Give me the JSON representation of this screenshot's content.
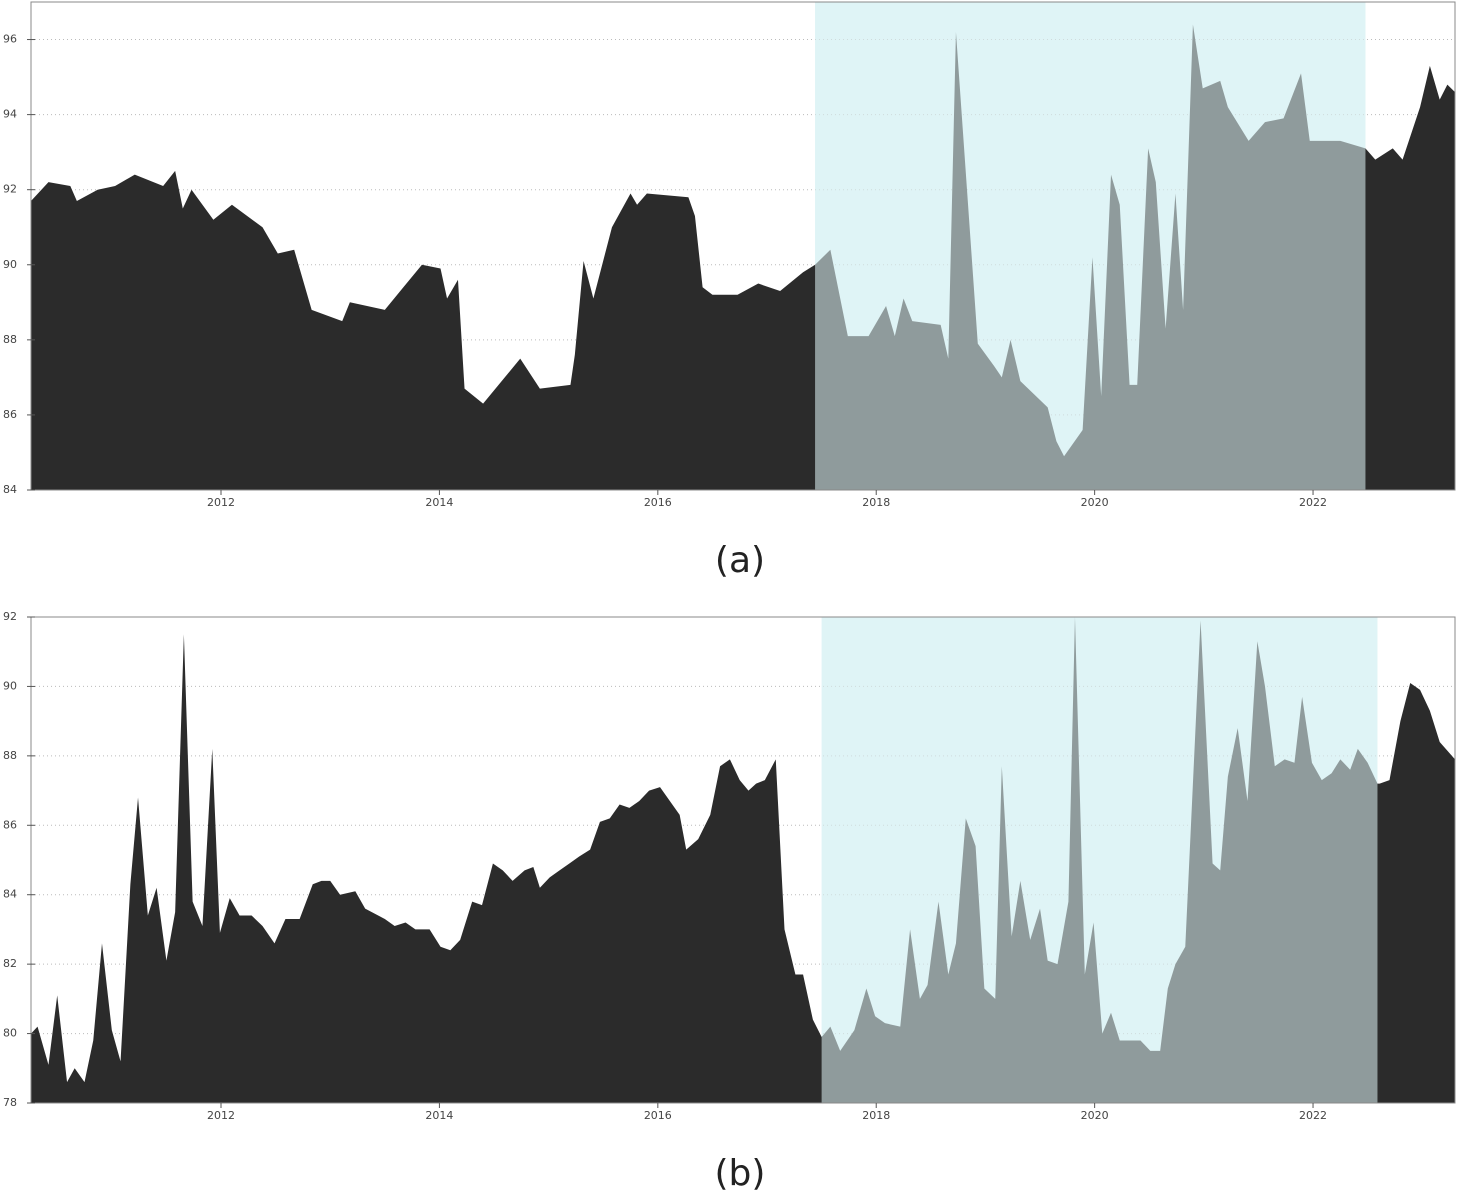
{
  "chart_data": [
    {
      "type": "area",
      "caption": "(a)",
      "color": "#2b2b2b",
      "highlight": [
        2017.44,
        2022.48
      ],
      "highlight_color": "#dff4f6",
      "grid": true,
      "xlim": [
        2010.26,
        2023.3
      ],
      "ylim": [
        84,
        97
      ],
      "xticks": [
        2012,
        2014,
        2016,
        2018,
        2020,
        2022
      ],
      "yticks": [
        84,
        86,
        88,
        90,
        92,
        94,
        96
      ],
      "x": [
        2010.26,
        2010.42,
        2010.62,
        2010.68,
        2010.87,
        2011.03,
        2011.21,
        2011.47,
        2011.58,
        2011.65,
        2011.73,
        2011.93,
        2012.1,
        2012.38,
        2012.52,
        2012.67,
        2012.83,
        2013.11,
        2013.18,
        2013.5,
        2013.67,
        2013.84,
        2014.01,
        2014.07,
        2014.17,
        2014.23,
        2014.4,
        2014.74,
        2014.92,
        2015.2,
        2015.24,
        2015.32,
        2015.41,
        2015.58,
        2015.75,
        2015.81,
        2015.9,
        2016.28,
        2016.34,
        2016.41,
        2016.5,
        2016.73,
        2016.92,
        2017.12,
        2017.33,
        2017.44,
        2017.58,
        2017.74,
        2017.93,
        2018.09,
        2018.17,
        2018.25,
        2018.33,
        2018.59,
        2018.66,
        2018.73,
        2018.93,
        2019.08,
        2019.15,
        2019.23,
        2019.32,
        2019.57,
        2019.65,
        2019.72,
        2019.89,
        2019.98,
        2020.06,
        2020.15,
        2020.23,
        2020.32,
        2020.39,
        2020.49,
        2020.56,
        2020.65,
        2020.74,
        2020.81,
        2020.9,
        2020.99,
        2021.15,
        2021.22,
        2021.41,
        2021.56,
        2021.73,
        2021.89,
        2021.97,
        2022.25,
        2022.48,
        2022.57,
        2022.73,
        2022.82,
        2022.98,
        2023.07,
        2023.16,
        2023.23,
        2023.3
      ],
      "values": [
        91.7,
        92.2,
        92.1,
        91.7,
        92.0,
        92.1,
        92.4,
        92.1,
        92.5,
        91.5,
        92.0,
        91.2,
        91.6,
        91.0,
        90.3,
        90.4,
        88.8,
        88.5,
        89.0,
        88.8,
        89.4,
        90.0,
        89.9,
        89.1,
        89.6,
        86.7,
        86.3,
        87.5,
        86.7,
        86.8,
        87.6,
        90.1,
        89.1,
        91.0,
        91.9,
        91.6,
        91.9,
        91.8,
        91.3,
        89.4,
        89.2,
        89.2,
        89.5,
        89.3,
        89.8,
        90.0,
        90.4,
        88.1,
        88.1,
        88.9,
        88.1,
        89.1,
        88.5,
        88.4,
        87.5,
        96.2,
        87.9,
        87.3,
        87.0,
        88.0,
        86.9,
        86.2,
        85.3,
        84.9,
        85.6,
        90.2,
        86.5,
        92.4,
        91.6,
        86.8,
        86.8,
        93.1,
        92.2,
        88.3,
        91.9,
        88.8,
        96.4,
        94.7,
        94.9,
        94.2,
        93.3,
        93.8,
        93.9,
        95.1,
        93.3,
        93.3,
        93.1,
        92.8,
        93.1,
        92.8,
        94.2,
        95.3,
        94.4,
        94.8,
        94.6
      ]
    },
    {
      "type": "area",
      "caption": "(b)",
      "color": "#2b2b2b",
      "highlight": [
        2017.5,
        2022.59
      ],
      "highlight_color": "#dff4f6",
      "grid": true,
      "xlim": [
        2010.26,
        2023.3
      ],
      "ylim": [
        78,
        92
      ],
      "xticks": [
        2012,
        2014,
        2016,
        2018,
        2020,
        2022
      ],
      "yticks": [
        78,
        80,
        82,
        84,
        86,
        88,
        90,
        92
      ],
      "x": [
        2010.26,
        2010.32,
        2010.42,
        2010.5,
        2010.59,
        2010.66,
        2010.75,
        2010.83,
        2010.91,
        2011.0,
        2011.08,
        2011.17,
        2011.24,
        2011.33,
        2011.41,
        2011.5,
        2011.58,
        2011.66,
        2011.74,
        2011.83,
        2011.92,
        2011.99,
        2012.08,
        2012.17,
        2012.28,
        2012.38,
        2012.49,
        2012.59,
        2012.72,
        2012.84,
        2012.92,
        2013.0,
        2013.09,
        2013.23,
        2013.32,
        2013.5,
        2013.59,
        2013.69,
        2013.78,
        2013.91,
        2014.01,
        2014.1,
        2014.19,
        2014.3,
        2014.39,
        2014.49,
        2014.58,
        2014.67,
        2014.78,
        2014.86,
        2014.92,
        2015.01,
        2015.1,
        2015.19,
        2015.28,
        2015.38,
        2015.47,
        2015.56,
        2015.65,
        2015.74,
        2015.83,
        2015.92,
        2016.02,
        2016.11,
        2016.2,
        2016.26,
        2016.37,
        2016.48,
        2016.57,
        2016.66,
        2016.75,
        2016.83,
        2016.9,
        2016.98,
        2017.08,
        2017.16,
        2017.26,
        2017.33,
        2017.42,
        2017.5,
        2017.58,
        2017.67,
        2017.8,
        2017.91,
        2017.99,
        2018.08,
        2018.22,
        2018.31,
        2018.4,
        2018.47,
        2018.57,
        2018.66,
        2018.73,
        2018.82,
        2018.91,
        2018.99,
        2019.09,
        2019.15,
        2019.24,
        2019.32,
        2019.41,
        2019.5,
        2019.57,
        2019.66,
        2019.76,
        2019.82,
        2019.91,
        2019.99,
        2020.07,
        2020.15,
        2020.23,
        2020.42,
        2020.51,
        2020.6,
        2020.67,
        2020.74,
        2020.83,
        2020.97,
        2021.08,
        2021.15,
        2021.22,
        2021.31,
        2021.4,
        2021.49,
        2021.56,
        2021.65,
        2021.74,
        2021.83,
        2021.9,
        2021.99,
        2022.08,
        2022.17,
        2022.25,
        2022.34,
        2022.41,
        2022.5,
        2022.59,
        2022.61,
        2022.7,
        2022.8,
        2022.89,
        2022.98,
        2023.07,
        2023.16,
        2023.3
      ],
      "values": [
        80.0,
        80.2,
        79.1,
        81.1,
        78.6,
        79.0,
        78.6,
        79.8,
        82.6,
        80.1,
        79.2,
        84.3,
        86.8,
        83.4,
        84.2,
        82.1,
        83.5,
        91.5,
        83.8,
        83.1,
        88.2,
        82.9,
        83.9,
        83.4,
        83.4,
        83.1,
        82.6,
        83.3,
        83.3,
        84.3,
        84.4,
        84.4,
        84.0,
        84.1,
        83.6,
        83.3,
        83.1,
        83.2,
        83.0,
        83.0,
        82.5,
        82.4,
        82.7,
        83.8,
        83.7,
        84.9,
        84.7,
        84.4,
        84.7,
        84.8,
        84.2,
        84.5,
        84.7,
        84.9,
        85.1,
        85.3,
        86.1,
        86.2,
        86.6,
        86.5,
        86.7,
        87.0,
        87.1,
        86.7,
        86.3,
        85.3,
        85.6,
        86.3,
        87.7,
        87.9,
        87.3,
        87.0,
        87.2,
        87.3,
        87.9,
        83.0,
        81.7,
        81.7,
        80.4,
        79.9,
        80.2,
        79.5,
        80.1,
        81.3,
        80.5,
        80.3,
        80.2,
        83.0,
        81.0,
        81.4,
        83.8,
        81.7,
        82.6,
        86.2,
        85.4,
        81.3,
        81.0,
        87.7,
        82.8,
        84.4,
        82.7,
        83.6,
        82.1,
        82.0,
        83.8,
        92.0,
        81.7,
        83.2,
        80.0,
        80.6,
        79.8,
        79.8,
        79.5,
        79.5,
        81.3,
        82.0,
        82.5,
        91.9,
        84.9,
        84.7,
        87.4,
        88.8,
        86.7,
        91.3,
        90.0,
        87.7,
        87.9,
        87.8,
        89.7,
        87.8,
        87.3,
        87.5,
        87.9,
        87.6,
        88.2,
        87.8,
        87.2,
        87.2,
        87.3,
        89.0,
        90.1,
        89.9,
        89.3,
        88.4,
        87.9
      ]
    }
  ]
}
